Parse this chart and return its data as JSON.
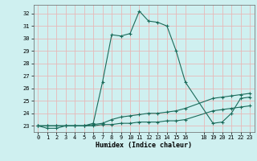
{
  "xlabel": "Humidex (Indice chaleur)",
  "bg_color": "#cff0f0",
  "grid_color": "#e8b8b8",
  "line_color": "#1a6b5a",
  "xlim": [
    -0.5,
    23.5
  ],
  "ylim": [
    22.5,
    32.7
  ],
  "yticks": [
    23,
    24,
    25,
    26,
    27,
    28,
    29,
    30,
    31,
    32
  ],
  "xticks": [
    0,
    1,
    2,
    3,
    4,
    5,
    6,
    7,
    8,
    9,
    10,
    11,
    12,
    13,
    14,
    15,
    16,
    18,
    19,
    20,
    21,
    22,
    23
  ],
  "series1_x": [
    0,
    1,
    2,
    3,
    4,
    5,
    6,
    7,
    8,
    9,
    10,
    11,
    12,
    13,
    14,
    15,
    16,
    19,
    20,
    21,
    22,
    23
  ],
  "series1_y": [
    23.0,
    22.8,
    22.8,
    23.0,
    23.0,
    23.0,
    23.2,
    26.5,
    30.3,
    30.2,
    30.4,
    32.2,
    31.4,
    31.3,
    31.0,
    29.0,
    26.5,
    23.2,
    23.3,
    24.0,
    25.2,
    25.3
  ],
  "series2_x": [
    0,
    1,
    2,
    3,
    4,
    5,
    6,
    7,
    8,
    9,
    10,
    11,
    12,
    13,
    14,
    15,
    16,
    19,
    20,
    21,
    22,
    23
  ],
  "series2_y": [
    23.0,
    23.0,
    23.0,
    23.0,
    23.0,
    23.0,
    23.1,
    23.2,
    23.5,
    23.7,
    23.8,
    23.9,
    24.0,
    24.0,
    24.1,
    24.2,
    24.4,
    25.2,
    25.3,
    25.4,
    25.5,
    25.6
  ],
  "series3_x": [
    0,
    1,
    2,
    3,
    4,
    5,
    6,
    7,
    8,
    9,
    10,
    11,
    12,
    13,
    14,
    15,
    16,
    19,
    20,
    21,
    22,
    23
  ],
  "series3_y": [
    23.0,
    23.0,
    23.0,
    23.0,
    23.0,
    23.0,
    23.0,
    23.1,
    23.1,
    23.2,
    23.2,
    23.3,
    23.3,
    23.3,
    23.4,
    23.4,
    23.5,
    24.2,
    24.3,
    24.4,
    24.5,
    24.6
  ]
}
